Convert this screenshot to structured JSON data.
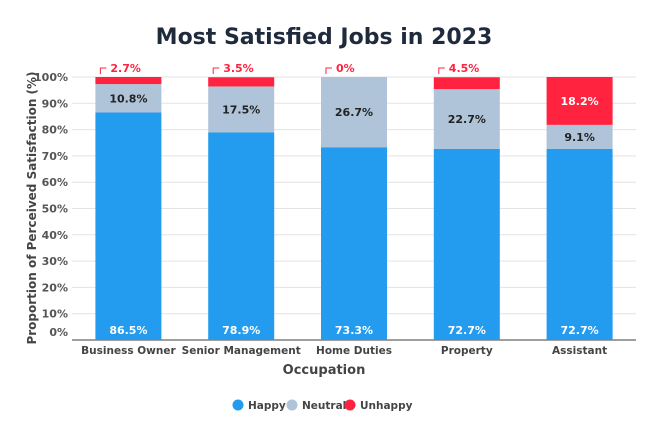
{
  "chart_data": {
    "type": "bar",
    "stacked": true,
    "title": "Most Satisfied Jobs in 2023",
    "xlabel": "Occupation",
    "ylabel": "Proportion of Perceived Satisfaction (%)",
    "ylim": [
      0,
      100
    ],
    "yticks": [
      "0%",
      "10%",
      "20%",
      "30%",
      "40%",
      "50%",
      "60%",
      "70%",
      "80%",
      "90%",
      "100%"
    ],
    "grid": true,
    "legend_position": "bottom",
    "categories": [
      "Business Owner",
      "Senior Management",
      "Home Duties",
      "Property",
      "Assistant"
    ],
    "series": [
      {
        "name": "Happy",
        "color": "#239cf0",
        "values": [
          86.5,
          78.9,
          73.3,
          72.7,
          72.7
        ],
        "labels": [
          "86.5%",
          "78.9%",
          "73.3%",
          "72.7%",
          "72.7%"
        ]
      },
      {
        "name": "Neutral",
        "color": "#afc4d8",
        "values": [
          10.8,
          17.5,
          26.7,
          22.7,
          9.1
        ],
        "labels": [
          "10.8%",
          "17.5%",
          "26.7%",
          "22.7%",
          "9.1%"
        ]
      },
      {
        "name": "Unhappy",
        "color": "#ff2340",
        "values": [
          2.7,
          3.5,
          0,
          4.5,
          18.2
        ],
        "labels": [
          "2.7%",
          "3.5%",
          "0%",
          "4.5%",
          "18.2%"
        ]
      }
    ]
  }
}
